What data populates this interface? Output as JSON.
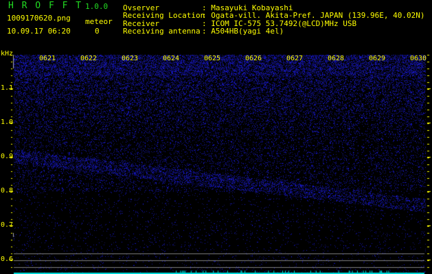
{
  "app": {
    "title_letters": "H R O F F T",
    "version": "1.0.0"
  },
  "file": {
    "name": "1009170620.png",
    "datetime": "10.09.17 06:20"
  },
  "meteor": {
    "label": "meteor",
    "count": "0"
  },
  "info": [
    {
      "label": "Ovserver",
      "value": ": Masayuki Kobayashi"
    },
    {
      "label": "Receiving Location",
      "value": ": Ogata-vill. Akita-Pref. JAPAN (139.96E, 40.02N)"
    },
    {
      "label": "Receiver",
      "value": ": ICOM IC-575 53.7492(@LCD)MHz USB"
    },
    {
      "label": "Receiving antenna",
      "value": ": A504HB(yagi 4el)"
    }
  ],
  "spectrogram": {
    "y_unit": "kHz",
    "y_ticks": [
      "1.1",
      "1.0",
      "0.9",
      "0.8",
      "0.7",
      "0.6"
    ],
    "time_labels": [
      "0621",
      "0622",
      "0623",
      "0624",
      "0625",
      "0626",
      "0627",
      "0628",
      "0629",
      "0630"
    ],
    "colors": {
      "noise": "#2020c0",
      "axis": "#ffff00",
      "ref_line": "#808080",
      "baseline": "#00dddd"
    }
  }
}
